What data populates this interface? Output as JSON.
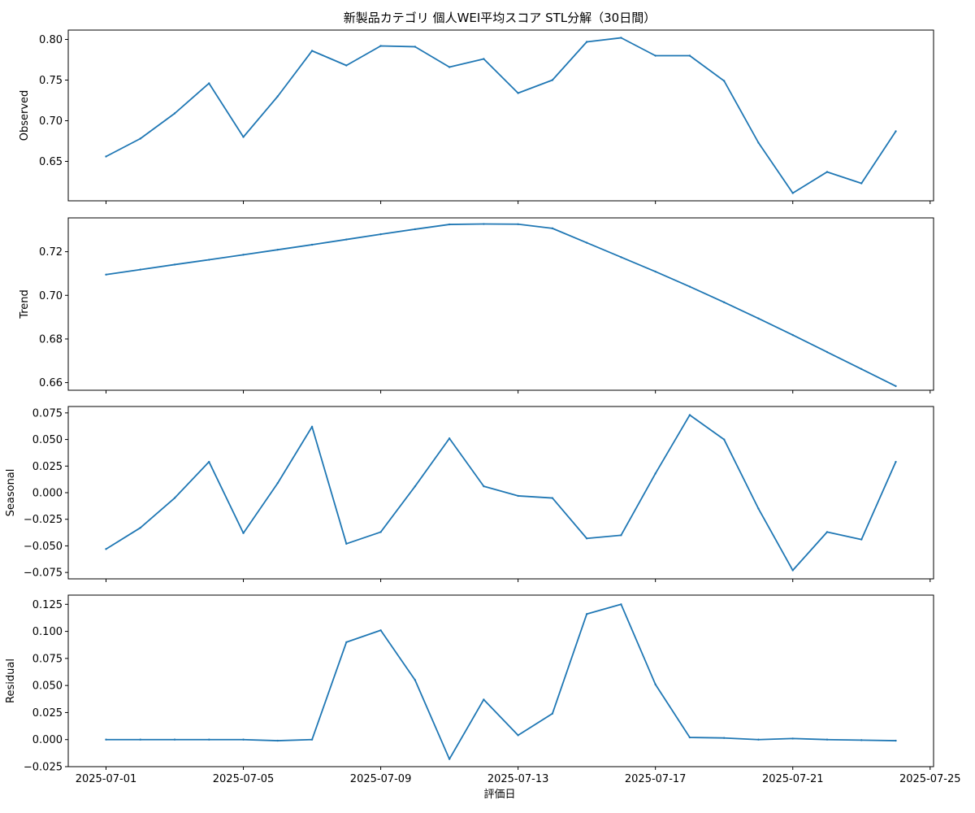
{
  "chart_data": {
    "type": "line",
    "title": "新製品カテゴリ 個人WEI平均スコア STL分解（30日間）",
    "xlabel": "評価日",
    "line_color": "#1f77b4",
    "x": [
      "2025-07-01",
      "2025-07-02",
      "2025-07-03",
      "2025-07-04",
      "2025-07-05",
      "2025-07-06",
      "2025-07-07",
      "2025-07-08",
      "2025-07-09",
      "2025-07-10",
      "2025-07-11",
      "2025-07-12",
      "2025-07-13",
      "2025-07-14",
      "2025-07-15",
      "2025-07-16",
      "2025-07-17",
      "2025-07-18",
      "2025-07-19",
      "2025-07-20",
      "2025-07-21",
      "2025-07-22",
      "2025-07-23",
      "2025-07-24"
    ],
    "xlim": [
      "2025-06-29 21:36",
      "2025-07-25 02:24"
    ],
    "x_ticks": [
      "2025-07-01",
      "2025-07-05",
      "2025-07-09",
      "2025-07-13",
      "2025-07-17",
      "2025-07-21",
      "2025-07-25"
    ],
    "panels": [
      {
        "ylabel": "Observed",
        "ylim": [
          0.6015,
          0.8115
        ],
        "y_ticks": [
          "0.65",
          "0.70",
          "0.75",
          "0.80"
        ],
        "values": [
          0.656,
          0.678,
          0.709,
          0.746,
          0.68,
          0.73,
          0.786,
          0.768,
          0.792,
          0.791,
          0.766,
          0.776,
          0.734,
          0.75,
          0.797,
          0.802,
          0.78,
          0.78,
          0.749,
          0.673,
          0.611,
          0.637,
          0.623,
          0.687
        ]
      },
      {
        "ylabel": "Trend",
        "ylim": [
          0.6565,
          0.7355
        ],
        "y_ticks": [
          "0.66",
          "0.68",
          "0.70",
          "0.72"
        ],
        "values": [
          0.7095,
          0.7118,
          0.7141,
          0.7163,
          0.7186,
          0.7209,
          0.7232,
          0.7256,
          0.728,
          0.7303,
          0.7325,
          0.7327,
          0.7326,
          0.7307,
          0.7241,
          0.7175,
          0.7109,
          0.704,
          0.6968,
          0.6894,
          0.6818,
          0.674,
          0.6662,
          0.6584
        ]
      },
      {
        "ylabel": "Seasonal",
        "ylim": [
          -0.081,
          0.081
        ],
        "y_ticks": [
          "−0.075",
          "−0.050",
          "−0.025",
          "0.000",
          "0.025",
          "0.050",
          "0.075"
        ],
        "values": [
          -0.053,
          -0.033,
          -0.005,
          0.029,
          -0.038,
          0.009,
          0.062,
          -0.048,
          -0.037,
          0.006,
          0.051,
          0.006,
          -0.003,
          -0.005,
          -0.043,
          -0.04,
          0.018,
          0.073,
          0.05,
          -0.015,
          -0.073,
          -0.037,
          -0.044,
          0.029
        ]
      },
      {
        "ylabel": "Residual",
        "ylim": [
          -0.025,
          0.1335
        ],
        "y_ticks": [
          "−0.025",
          "0.000",
          "0.025",
          "0.050",
          "0.075",
          "0.100",
          "0.125"
        ],
        "values": [
          0.0,
          0.0,
          0.0,
          0.0,
          0.0,
          -0.001,
          0.0,
          0.09,
          0.101,
          0.055,
          -0.018,
          0.037,
          0.004,
          0.024,
          0.116,
          0.125,
          0.051,
          0.002,
          0.0015,
          0.0,
          0.001,
          0.0,
          -0.0005,
          -0.001
        ]
      }
    ]
  }
}
